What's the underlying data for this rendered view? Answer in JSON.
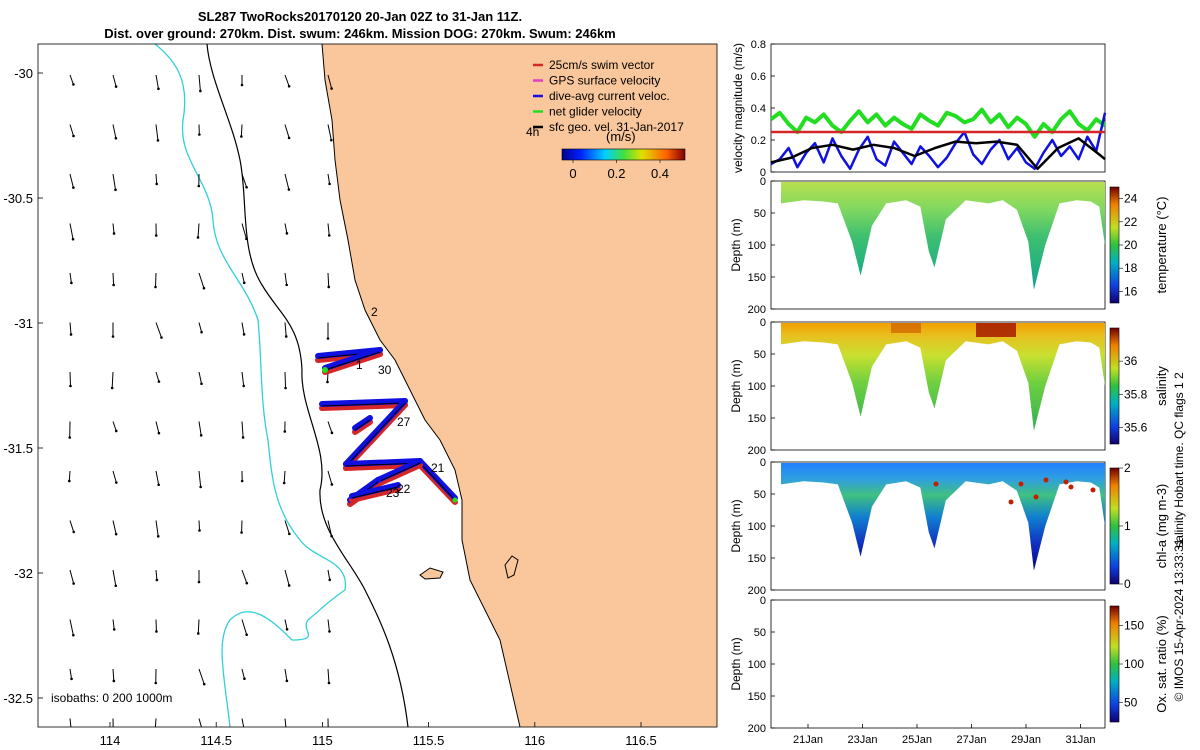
{
  "header": {
    "title_line1": "SL287 TwoRocks20170120 20-Jan 02Z to 31-Jan 11Z.",
    "title_line2": "Dist. over ground: 270km. Dist. swum: 246km. Mission DOG: 270km. Swum: 246km"
  },
  "map": {
    "lon_ticks": [
      "114",
      "114.5",
      "115",
      "115.5",
      "116",
      "116.5"
    ],
    "lat_ticks": [
      "-30",
      "-30.5",
      "-31",
      "-31.5",
      "-32",
      "-32.5"
    ],
    "legend": [
      "25cm/s swim vector",
      "GPS surface velocity",
      "dive-avg current veloc.",
      "net glider velocity",
      "sfc geo. vel. 31-Jan-2017"
    ],
    "legend_colors": [
      "#d62728",
      "#e040c0",
      "#1010e0",
      "#22dd22",
      "#000000"
    ],
    "colorbar_label": "(m/s)",
    "colorbar_ticks": [
      "0",
      "0.2",
      "0.4"
    ],
    "time_step_label": "4h",
    "isobaths_label": "isobaths: 0   200  1000m",
    "day_labels": [
      "2",
      "1",
      "30",
      "27",
      "21",
      "22",
      "23"
    ],
    "land_color": "#f9c79b",
    "coast_color": "#000000",
    "isobath_200_color": "#000000",
    "isobath_1000_color": "#30d0d8"
  },
  "velocity_panel": {
    "ylabel": "velocity magnitude (m/s)",
    "yticks": [
      "0",
      "0.2",
      "0.4",
      "0.6",
      "0.8"
    ]
  },
  "profiles": [
    {
      "ylabel": "Depth (m)",
      "yticks": [
        "0",
        "50",
        "100",
        "150",
        "200"
      ],
      "cbar_label": "temperature (°C)",
      "cbar_ticks": [
        "16",
        "18",
        "20",
        "22",
        "24"
      ]
    },
    {
      "ylabel": "Depth (m)",
      "yticks": [
        "0",
        "50",
        "100",
        "150",
        "200"
      ],
      "cbar_label": "salinity",
      "cbar_ticks": [
        "35.6",
        "35.8",
        "36"
      ]
    },
    {
      "ylabel": "Depth (m)",
      "yticks": [
        "0",
        "50",
        "100",
        "150",
        "200"
      ],
      "cbar_label": "chl-a (mg m-3)",
      "cbar_ticks": [
        "0",
        "1",
        "2"
      ]
    },
    {
      "ylabel": "Depth (m)",
      "yticks": [
        "0",
        "50",
        "100",
        "150",
        "200"
      ],
      "cbar_label": "Ox. sat. ratio (%)",
      "cbar_ticks": [
        "50",
        "100",
        "150"
      ]
    }
  ],
  "time_axis": {
    "ticks": [
      "21Jan",
      "23Jan",
      "25Jan",
      "27Jan",
      "29Jan",
      "31Jan"
    ]
  },
  "side_text": {
    "qc_flags": "salinity Hobart time. QC flags 1 2",
    "footer": "© IMOS 15-Apr-2024 13:33:31"
  },
  "chart_data": [
    {
      "type": "line",
      "title": "velocity magnitude",
      "xlabel": "",
      "ylabel": "velocity magnitude (m/s)",
      "xlim": [
        20.1,
        31.5
      ],
      "ylim": [
        0,
        0.8
      ],
      "series": [
        {
          "name": "net glider velocity",
          "color": "#22dd22",
          "x": [
            20.1,
            20.4,
            20.7,
            21.0,
            21.3,
            21.6,
            21.9,
            22.2,
            22.5,
            22.8,
            23.1,
            23.4,
            23.7,
            24.0,
            24.3,
            24.6,
            24.9,
            25.2,
            25.5,
            25.8,
            26.1,
            26.4,
            26.7,
            27.0,
            27.3,
            27.6,
            27.9,
            28.2,
            28.5,
            28.8,
            29.1,
            29.4,
            29.7,
            30.0,
            30.3,
            30.6,
            30.9,
            31.2,
            31.5
          ],
          "y": [
            0.33,
            0.37,
            0.3,
            0.25,
            0.34,
            0.31,
            0.36,
            0.29,
            0.25,
            0.32,
            0.38,
            0.31,
            0.36,
            0.29,
            0.34,
            0.3,
            0.27,
            0.36,
            0.32,
            0.29,
            0.37,
            0.35,
            0.31,
            0.33,
            0.39,
            0.31,
            0.36,
            0.28,
            0.34,
            0.3,
            0.22,
            0.3,
            0.25,
            0.33,
            0.38,
            0.3,
            0.26,
            0.33,
            0.29
          ]
        },
        {
          "name": "dive-avg current veloc.",
          "color": "#1010e0",
          "x": [
            20.1,
            20.4,
            20.7,
            21.0,
            21.3,
            21.6,
            21.9,
            22.2,
            22.5,
            22.8,
            23.1,
            23.4,
            23.7,
            24.0,
            24.3,
            24.6,
            24.9,
            25.2,
            25.5,
            25.8,
            26.1,
            26.4,
            26.7,
            27.0,
            27.3,
            27.6,
            27.9,
            28.2,
            28.5,
            28.8,
            29.1,
            29.4,
            29.7,
            30.0,
            30.3,
            30.6,
            30.9,
            31.2,
            31.5
          ],
          "y": [
            0.05,
            0.08,
            0.15,
            0.03,
            0.12,
            0.18,
            0.06,
            0.21,
            0.1,
            0.02,
            0.14,
            0.22,
            0.08,
            0.04,
            0.19,
            0.12,
            0.05,
            0.16,
            0.1,
            0.03,
            0.09,
            0.18,
            0.25,
            0.11,
            0.05,
            0.14,
            0.2,
            0.08,
            0.15,
            0.06,
            0.02,
            0.12,
            0.2,
            0.1,
            0.16,
            0.08,
            0.22,
            0.13,
            0.37
          ]
        },
        {
          "name": "sfc geo. vel. 31-Jan-2017",
          "color": "#000000",
          "x": [
            20.1,
            20.8,
            21.5,
            22.2,
            22.9,
            23.6,
            24.3,
            25.0,
            25.7,
            26.4,
            27.1,
            27.8,
            28.5,
            29.2,
            29.9,
            30.6,
            31.3,
            31.5
          ],
          "y": [
            0.06,
            0.09,
            0.15,
            0.17,
            0.14,
            0.17,
            0.15,
            0.1,
            0.15,
            0.19,
            0.18,
            0.19,
            0.17,
            0.02,
            0.15,
            0.21,
            0.11,
            0.08
          ]
        },
        {
          "name": "25cm/s swim vector",
          "color": "#d62728",
          "x": [
            20.1,
            31.5
          ],
          "y": [
            0.25,
            0.25
          ]
        }
      ]
    },
    {
      "type": "heatmap",
      "title": "temperature (°C)",
      "ylabel": "Depth (m)",
      "xlim": [
        20.1,
        31.5
      ],
      "ylim": [
        200,
        0
      ],
      "clim": [
        15,
        25
      ],
      "dive_depth_profile": {
        "x": [
          20.1,
          20.9,
          21.6,
          22.1,
          22.6,
          22.9,
          23.3,
          23.8,
          24.5,
          25.0,
          25.3,
          25.5,
          25.9,
          26.6,
          27.4,
          27.9,
          28.4,
          28.8,
          29.0,
          29.4,
          29.9,
          30.5,
          31.0,
          31.3,
          31.5
        ],
        "max_depth": [
          35,
          30,
          32,
          35,
          95,
          148,
          70,
          35,
          30,
          40,
          110,
          135,
          60,
          30,
          35,
          30,
          45,
          95,
          170,
          100,
          35,
          30,
          32,
          40,
          100
        ]
      },
      "surface_value": 21.5,
      "bottom_value": 17.5
    },
    {
      "type": "heatmap",
      "title": "salinity",
      "ylabel": "Depth (m)",
      "xlim": [
        20.1,
        31.5
      ],
      "ylim": [
        200,
        0
      ],
      "clim": [
        35.5,
        36.2
      ],
      "dive_depth_profile": {
        "x": [
          20.1,
          20.9,
          21.6,
          22.1,
          22.6,
          22.9,
          23.3,
          23.8,
          24.5,
          25.0,
          25.3,
          25.5,
          25.9,
          26.6,
          27.4,
          27.9,
          28.4,
          28.8,
          29.0,
          29.4,
          29.9,
          30.5,
          31.0,
          31.3,
          31.5
        ],
        "max_depth": [
          35,
          30,
          32,
          35,
          95,
          148,
          70,
          35,
          30,
          40,
          110,
          135,
          60,
          30,
          35,
          30,
          45,
          95,
          170,
          100,
          35,
          30,
          32,
          40,
          100
        ]
      },
      "surface_value": 36.0,
      "bottom_value": 35.75
    },
    {
      "type": "heatmap",
      "title": "chl-a (mg m-3)",
      "ylabel": "Depth (m)",
      "xlim": [
        20.1,
        31.5
      ],
      "ylim": [
        200,
        0
      ],
      "clim": [
        0,
        2
      ],
      "dive_depth_profile": {
        "x": [
          20.1,
          20.9,
          21.6,
          22.1,
          22.6,
          22.9,
          23.3,
          23.8,
          24.5,
          25.0,
          25.3,
          25.5,
          25.9,
          26.6,
          27.4,
          27.9,
          28.4,
          28.8,
          29.0,
          29.4,
          29.9,
          30.5,
          31.0,
          31.3,
          31.5
        ],
        "max_depth": [
          35,
          30,
          32,
          35,
          95,
          148,
          70,
          35,
          30,
          40,
          110,
          135,
          60,
          30,
          35,
          30,
          45,
          95,
          170,
          100,
          35,
          30,
          32,
          40,
          100
        ]
      },
      "surface_value": 0.5,
      "bottom_value": 0.1
    },
    {
      "type": "heatmap",
      "title": "Ox. sat. ratio (%)",
      "ylabel": "Depth (m)",
      "xlim": [
        20.1,
        31.5
      ],
      "ylim": [
        200,
        0
      ],
      "clim": [
        25,
        175
      ],
      "note": "no data plotted"
    }
  ]
}
